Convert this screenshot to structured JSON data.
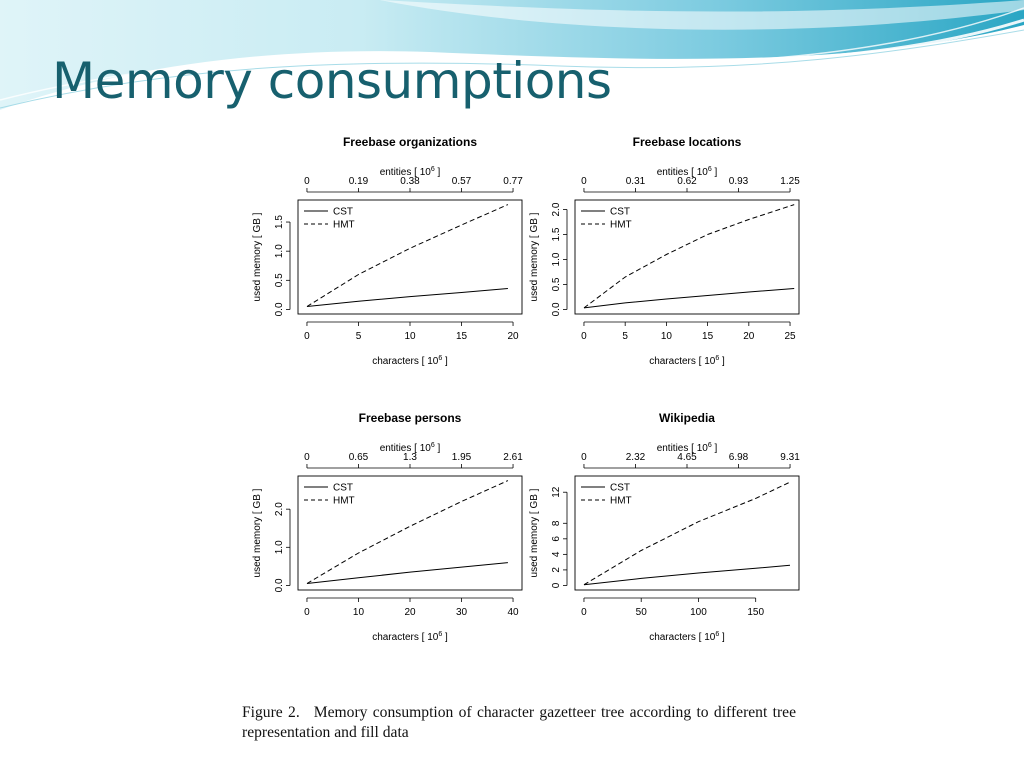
{
  "slide": {
    "title": "Memory consumptions",
    "colors": {
      "title": "#17606e",
      "wave_light": "#c9ecf3",
      "wave_dark": "#2aa6c4"
    }
  },
  "figure": {
    "caption_label": "Figure 2.",
    "caption_text": "Memory consumption of character gazetteer tree according to different tree representation and fill data"
  },
  "chart_data": [
    {
      "type": "line",
      "title": "Freebase organizations",
      "xlabel": "characters [ 10^6 ]",
      "ylabel": "used memory [ GB ]",
      "top_axis_label": "entities [ 10^6 ]",
      "x_ticks": [
        "0",
        "5",
        "10",
        "15",
        "20"
      ],
      "top_ticks": [
        "0",
        "0.19",
        "0.38",
        "0.57",
        "0.77"
      ],
      "y_ticks": [
        "0.0",
        "0.5",
        "1.0",
        "1.5"
      ],
      "xlim": [
        0,
        20
      ],
      "ylim": [
        0,
        1.8
      ],
      "y_tick_values": [
        0,
        0.5,
        1.0,
        1.5
      ],
      "legend_placement": "top-left",
      "series": [
        {
          "name": "CST",
          "dash": "solid",
          "x": [
            0,
            5,
            10,
            15,
            19.5
          ],
          "y": [
            0.05,
            0.14,
            0.22,
            0.29,
            0.36
          ]
        },
        {
          "name": "HMT",
          "dash": "dashed",
          "x": [
            0,
            5,
            10,
            15,
            19.5
          ],
          "y": [
            0.05,
            0.6,
            1.05,
            1.45,
            1.8
          ]
        }
      ]
    },
    {
      "type": "line",
      "title": "Freebase locations",
      "xlabel": "characters [ 10^6 ]",
      "ylabel": "used memory [ GB ]",
      "top_axis_label": "entities [ 10^6 ]",
      "x_ticks": [
        "0",
        "5",
        "10",
        "15",
        "20",
        "25"
      ],
      "top_ticks": [
        "0",
        "0.31",
        "0.62",
        "0.93",
        "1.25"
      ],
      "y_ticks": [
        "0.0",
        "0.5",
        "1.0",
        "1.5",
        "2.0"
      ],
      "xlim": [
        0,
        25
      ],
      "ylim": [
        0,
        2.1
      ],
      "y_tick_values": [
        0,
        0.5,
        1.0,
        1.5,
        2.0
      ],
      "legend_placement": "top-left",
      "series": [
        {
          "name": "CST",
          "dash": "solid",
          "x": [
            0,
            5,
            10,
            15,
            20,
            25.5
          ],
          "y": [
            0.03,
            0.13,
            0.21,
            0.28,
            0.35,
            0.42
          ]
        },
        {
          "name": "HMT",
          "dash": "dashed",
          "x": [
            0,
            5,
            10,
            15,
            20,
            25.5
          ],
          "y": [
            0.03,
            0.65,
            1.1,
            1.5,
            1.8,
            2.1
          ]
        }
      ]
    },
    {
      "type": "line",
      "title": "Freebase persons",
      "xlabel": "characters [ 10^6 ]",
      "ylabel": "used memory [ GB ]",
      "top_axis_label": "entities [ 10^6 ]",
      "x_ticks": [
        "0",
        "10",
        "20",
        "30",
        "40"
      ],
      "top_ticks": [
        "0",
        "0.65",
        "1.3",
        "1.95",
        "2.61"
      ],
      "y_ticks": [
        "0.0",
        "1.0",
        "2.0"
      ],
      "xlim": [
        0,
        40
      ],
      "ylim": [
        0,
        2.75
      ],
      "y_tick_values": [
        0,
        1.0,
        2.0
      ],
      "legend_placement": "top-left",
      "series": [
        {
          "name": "CST",
          "dash": "solid",
          "x": [
            0,
            10,
            20,
            30,
            39
          ],
          "y": [
            0.05,
            0.2,
            0.35,
            0.48,
            0.6
          ]
        },
        {
          "name": "HMT",
          "dash": "dashed",
          "x": [
            0,
            10,
            20,
            30,
            39
          ],
          "y": [
            0.05,
            0.85,
            1.55,
            2.2,
            2.75
          ]
        }
      ]
    },
    {
      "type": "line",
      "title": "Wikipedia",
      "xlabel": "characters [ 10^6 ]",
      "ylabel": "used memory [ GB ]",
      "top_axis_label": "entities [ 10^6 ]",
      "x_ticks": [
        "0",
        "50",
        "100",
        "150"
      ],
      "top_ticks": [
        "0",
        "2.32",
        "4.65",
        "6.98",
        "9.31"
      ],
      "y_ticks": [
        "0",
        "2",
        "4",
        "6",
        "8",
        "12"
      ],
      "xlim": [
        0,
        180
      ],
      "ylim": [
        0,
        13.5
      ],
      "y_tick_values": [
        0,
        2,
        4,
        6,
        8,
        12
      ],
      "legend_placement": "top-left",
      "series": [
        {
          "name": "CST",
          "dash": "solid",
          "x": [
            0,
            50,
            100,
            150,
            180
          ],
          "y": [
            0.1,
            0.9,
            1.6,
            2.2,
            2.6
          ]
        },
        {
          "name": "HMT",
          "dash": "dashed",
          "x": [
            0,
            50,
            100,
            150,
            180
          ],
          "y": [
            0.1,
            4.5,
            8.2,
            11.2,
            13.3
          ]
        }
      ]
    }
  ]
}
